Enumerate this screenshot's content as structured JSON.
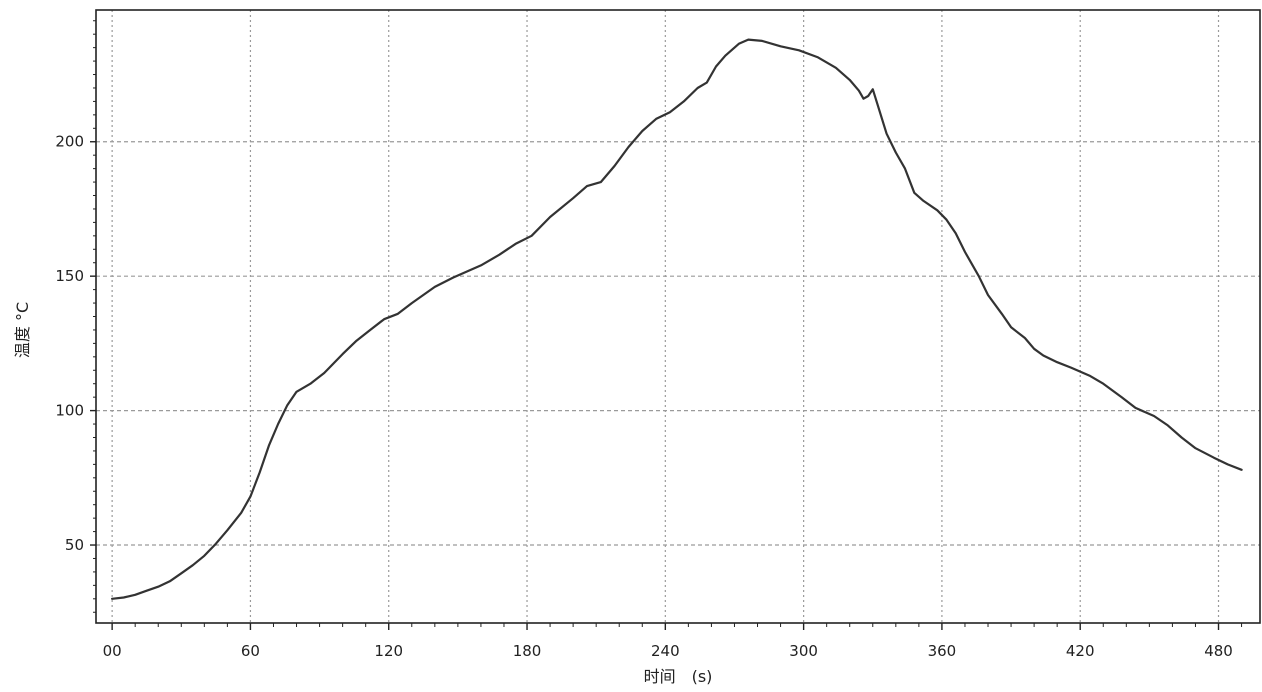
{
  "chart_data": {
    "type": "line",
    "title": "",
    "xlabel": "时间　(s)",
    "ylabel": "温度 °C",
    "x_ticks": [
      "00",
      "60",
      "120",
      "180",
      "240",
      "300",
      "360",
      "420",
      "480"
    ],
    "x_tick_values": [
      0,
      60,
      120,
      180,
      240,
      300,
      360,
      420,
      480
    ],
    "y_ticks": [
      "50",
      "100",
      "150",
      "200"
    ],
    "y_tick_values": [
      50,
      100,
      150,
      200
    ],
    "xlim": [
      -7,
      498
    ],
    "ylim": [
      21,
      249
    ],
    "grid": true,
    "line_color": "#333333",
    "grid_color": "#9a9a9a",
    "series": [
      {
        "points": [
          [
            0,
            30
          ],
          [
            5,
            30.5
          ],
          [
            10,
            31.5
          ],
          [
            15,
            33
          ],
          [
            20,
            34.5
          ],
          [
            25,
            36.5
          ],
          [
            30,
            39.5
          ],
          [
            35,
            42.5
          ],
          [
            40,
            46
          ],
          [
            45,
            50.5
          ],
          [
            50,
            55.5
          ],
          [
            56,
            62
          ],
          [
            60,
            68
          ],
          [
            64,
            77
          ],
          [
            68,
            87
          ],
          [
            72,
            95
          ],
          [
            76,
            102
          ],
          [
            80,
            107
          ],
          [
            86,
            110
          ],
          [
            92,
            114
          ],
          [
            100,
            121
          ],
          [
            106,
            126
          ],
          [
            112,
            130
          ],
          [
            118,
            134
          ],
          [
            124,
            136
          ],
          [
            130,
            140
          ],
          [
            140,
            146
          ],
          [
            148,
            149.5
          ],
          [
            160,
            154
          ],
          [
            168,
            158
          ],
          [
            175,
            162
          ],
          [
            182,
            165
          ],
          [
            190,
            172
          ],
          [
            200,
            179
          ],
          [
            206,
            183.5
          ],
          [
            212,
            185
          ],
          [
            218,
            191
          ],
          [
            224,
            198
          ],
          [
            230,
            204
          ],
          [
            236,
            208.5
          ],
          [
            242,
            211
          ],
          [
            248,
            215
          ],
          [
            254,
            220
          ],
          [
            258,
            222
          ],
          [
            262,
            228
          ],
          [
            266,
            232
          ],
          [
            272,
            236.5
          ],
          [
            276,
            238
          ],
          [
            282,
            237.5
          ],
          [
            290,
            235.5
          ],
          [
            298,
            234
          ],
          [
            306,
            231.5
          ],
          [
            314,
            227.5
          ],
          [
            320,
            223
          ],
          [
            324,
            219
          ],
          [
            326,
            216
          ],
          [
            328,
            217
          ],
          [
            330,
            219.5
          ],
          [
            332,
            214
          ],
          [
            336,
            203
          ],
          [
            340,
            196
          ],
          [
            344,
            190
          ],
          [
            348,
            181
          ],
          [
            352,
            178
          ],
          [
            358,
            174.5
          ],
          [
            362,
            171
          ],
          [
            366,
            166
          ],
          [
            370,
            159
          ],
          [
            376,
            150
          ],
          [
            380,
            143
          ],
          [
            386,
            136
          ],
          [
            390,
            131
          ],
          [
            396,
            127
          ],
          [
            400,
            123
          ],
          [
            404,
            120.5
          ],
          [
            410,
            118
          ],
          [
            416,
            116
          ],
          [
            424,
            113
          ],
          [
            430,
            110
          ],
          [
            438,
            105
          ],
          [
            444,
            101
          ],
          [
            452,
            98
          ],
          [
            458,
            94.5
          ],
          [
            464,
            90
          ],
          [
            470,
            86
          ],
          [
            478,
            82.5
          ],
          [
            484,
            80
          ],
          [
            490,
            78
          ]
        ]
      }
    ]
  }
}
